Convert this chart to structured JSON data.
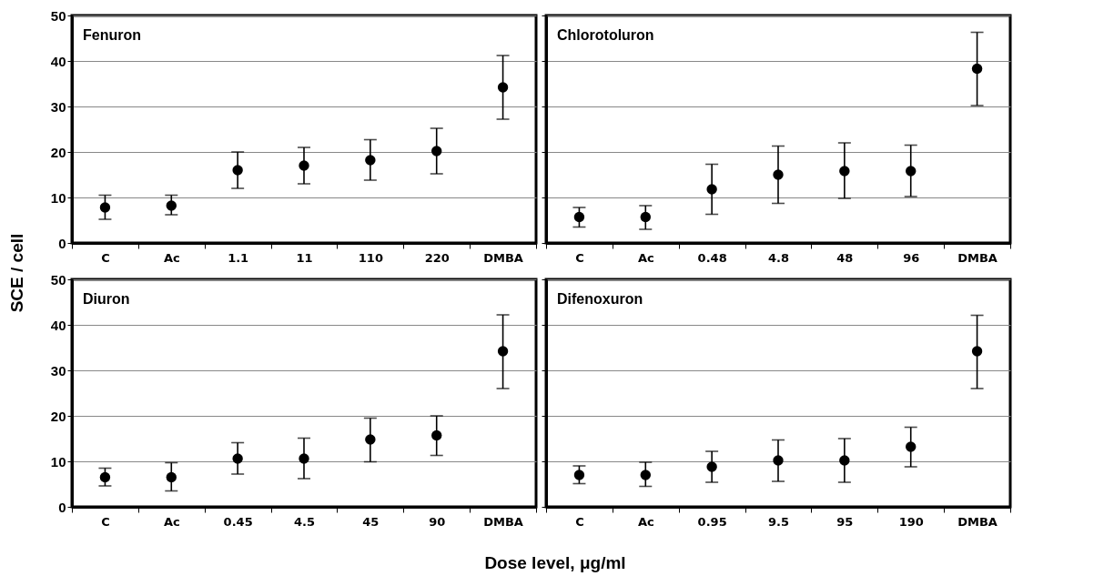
{
  "chart_data": [
    {
      "type": "scatter",
      "title": "Fenuron",
      "ylabel": "SCE / cell",
      "categories": [
        "C",
        "Ac",
        "1.1",
        "11",
        "110",
        "220",
        "DMBA"
      ],
      "series": [
        {
          "color": "#000000",
          "values": [
            7.8,
            8.2,
            16,
            17,
            18.2,
            20.2,
            34.2
          ],
          "errors": [
            [
              5.2,
              10.5
            ],
            [
              6.2,
              10.5
            ],
            [
              12,
              20
            ],
            [
              13,
              21
            ],
            [
              13.8,
              22.7
            ],
            [
              15.2,
              25.2
            ],
            [
              27.2,
              41.2
            ]
          ]
        }
      ],
      "ylim": [
        0,
        50
      ],
      "yticks": [
        0,
        10,
        20,
        30,
        40,
        50
      ],
      "grid": "y",
      "marker": "circle"
    },
    {
      "type": "scatter",
      "title": "Chlorotoluron",
      "categories": [
        "C",
        "Ac",
        "0.48",
        "4.8",
        "48",
        "96",
        "DMBA"
      ],
      "series": [
        {
          "color": "#000000",
          "values": [
            5.7,
            5.7,
            11.8,
            15,
            15.8,
            15.8,
            38.3
          ],
          "errors": [
            [
              3.5,
              7.8
            ],
            [
              3,
              8.2
            ],
            [
              6.3,
              17.3
            ],
            [
              8.7,
              21.3
            ],
            [
              9.8,
              22
            ],
            [
              10.2,
              21.5
            ],
            [
              30.2,
              46.3
            ]
          ]
        }
      ],
      "ylim": [
        0,
        50
      ],
      "yticks": [
        0,
        10,
        20,
        30,
        40,
        50
      ],
      "grid": "y",
      "marker": "circle",
      "tick_labels": "x"
    },
    {
      "type": "scatter",
      "title": "Diuron",
      "xlabel": "Dose level, μg/ml",
      "categories": [
        "C",
        "Ac",
        "0.45",
        "4.5",
        "45",
        "90",
        "DMBA"
      ],
      "series": [
        {
          "color": "#000000",
          "values": [
            6.5,
            6.5,
            10.6,
            10.6,
            14.8,
            15.7,
            34.2
          ],
          "errors": [
            [
              4.6,
              8.5
            ],
            [
              3.5,
              9.7
            ],
            [
              7.2,
              14.1
            ],
            [
              6.2,
              15.1
            ],
            [
              9.9,
              19.5
            ],
            [
              11.3,
              20
            ],
            [
              26,
              42.2
            ]
          ]
        }
      ],
      "ylim": [
        0,
        50
      ],
      "yticks": [
        0,
        10,
        20,
        30,
        40,
        50
      ],
      "grid": "y",
      "marker": "circle"
    },
    {
      "type": "scatter",
      "title": "Difenoxuron",
      "categories": [
        "C",
        "Ac",
        "0.95",
        "9.5",
        "95",
        "190",
        "DMBA"
      ],
      "series": [
        {
          "color": "#000000",
          "values": [
            7,
            7,
            8.8,
            10.2,
            10.2,
            13.2,
            34.2
          ],
          "errors": [
            [
              5.1,
              9
            ],
            [
              4.5,
              9.8
            ],
            [
              5.4,
              12.2
            ],
            [
              5.6,
              14.7
            ],
            [
              5.4,
              15
            ],
            [
              8.8,
              17.5
            ],
            [
              26,
              42.1
            ]
          ]
        }
      ],
      "ylim": [
        0,
        50
      ],
      "yticks": [
        0,
        10,
        20,
        30,
        40,
        50
      ],
      "grid": "y",
      "marker": "circle",
      "tick_labels": "x"
    }
  ]
}
